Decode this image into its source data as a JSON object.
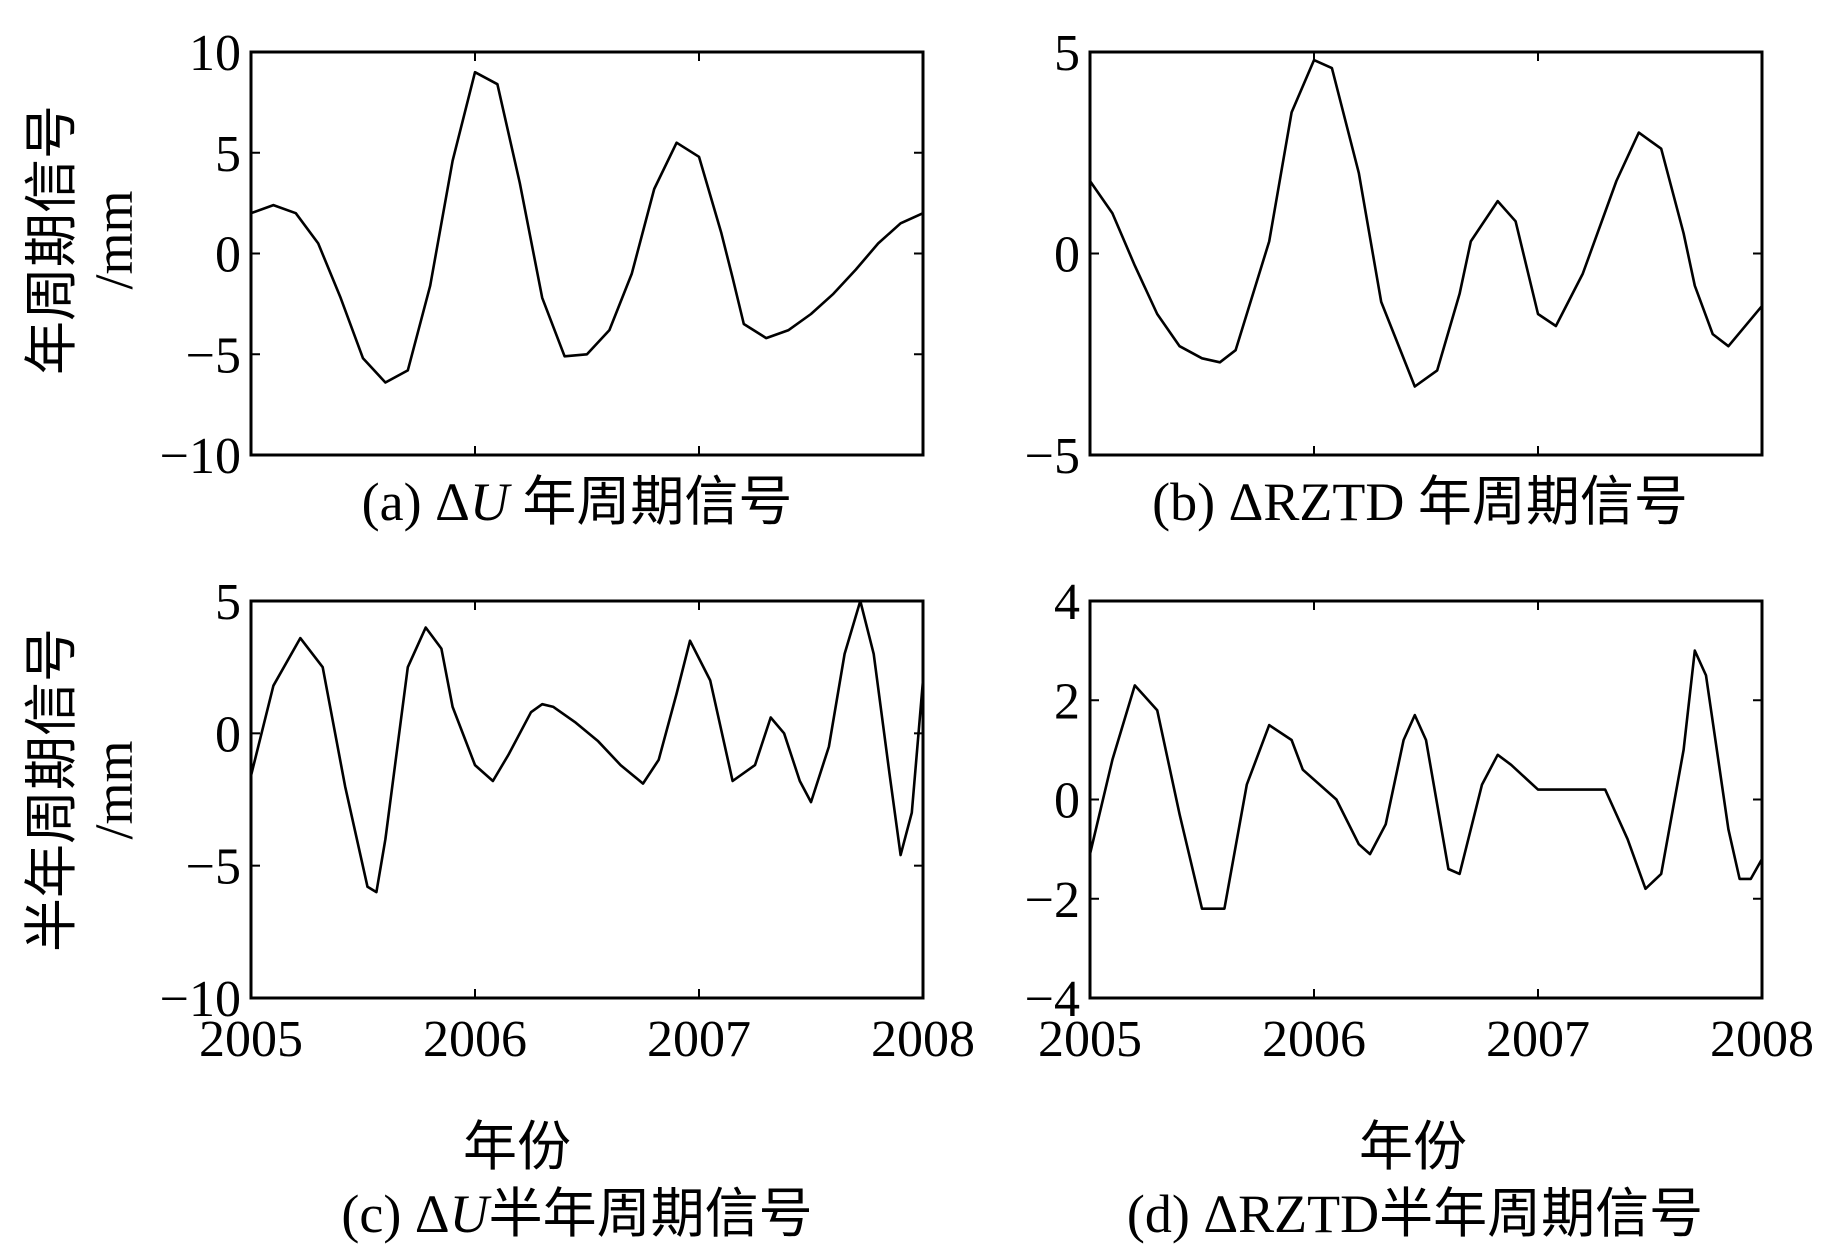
{
  "figure": {
    "ylabels": {
      "top_line1": "年周期信号",
      "top_line2": "/mm",
      "bottom_line1": "半年周期信号",
      "bottom_line2": "/mm"
    },
    "xlabel": "年份",
    "captions": {
      "a": {
        "prefix": "(a) Δ",
        "var": "U",
        "suffix": " 年周期信号"
      },
      "b": {
        "prefix": "(b) ΔRZTD 年周期信号",
        "var": "",
        "suffix": ""
      },
      "c": {
        "prefix": "(c) Δ",
        "var": "U",
        "suffix": "半年周期信号"
      },
      "d": {
        "prefix": "(d) ΔRZTD半年周期信号",
        "var": "",
        "suffix": ""
      }
    }
  },
  "chart_data": [
    {
      "id": "a",
      "type": "line",
      "xlim": [
        2005,
        2008
      ],
      "ylim": [
        -10,
        10
      ],
      "yticks": [
        10,
        5,
        0,
        -5,
        -10
      ],
      "ytick_labels": [
        "10",
        "5",
        "0",
        "−5",
        "−10"
      ],
      "xticks": [
        2006,
        2007
      ],
      "xtick_labels": [],
      "x": [
        2005.0,
        2005.1,
        2005.2,
        2005.3,
        2005.4,
        2005.5,
        2005.6,
        2005.7,
        2005.8,
        2005.9,
        2006.0,
        2006.1,
        2006.2,
        2006.3,
        2006.4,
        2006.5,
        2006.6,
        2006.7,
        2006.8,
        2006.9,
        2007.0,
        2007.1,
        2007.15,
        2007.2,
        2007.3,
        2007.4,
        2007.5,
        2007.6,
        2007.7,
        2007.8,
        2007.9,
        2008.0
      ],
      "y": [
        2.0,
        2.4,
        2.0,
        0.5,
        -2.2,
        -5.2,
        -6.4,
        -5.8,
        -1.6,
        4.6,
        9.0,
        8.4,
        3.5,
        -2.2,
        -5.1,
        -5.0,
        -3.8,
        -1.0,
        3.2,
        5.5,
        4.8,
        1.0,
        -1.2,
        -3.5,
        -4.2,
        -3.8,
        -3.0,
        -2.0,
        -0.8,
        0.5,
        1.5,
        2.0
      ]
    },
    {
      "id": "b",
      "type": "line",
      "xlim": [
        2005,
        2008
      ],
      "ylim": [
        -5,
        5
      ],
      "yticks": [
        5,
        0,
        -5
      ],
      "ytick_labels": [
        "5",
        "0",
        "−5"
      ],
      "xticks": [
        2006,
        2007
      ],
      "xtick_labels": [],
      "x": [
        2005.0,
        2005.1,
        2005.2,
        2005.3,
        2005.4,
        2005.5,
        2005.58,
        2005.65,
        2005.8,
        2005.9,
        2006.0,
        2006.08,
        2006.2,
        2006.3,
        2006.45,
        2006.55,
        2006.65,
        2006.7,
        2006.82,
        2006.9,
        2007.0,
        2007.08,
        2007.2,
        2007.35,
        2007.45,
        2007.55,
        2007.65,
        2007.7,
        2007.78,
        2007.85,
        2008.0
      ],
      "y": [
        1.8,
        1.0,
        -0.3,
        -1.5,
        -2.3,
        -2.6,
        -2.7,
        -2.4,
        0.3,
        3.5,
        4.8,
        4.6,
        2.0,
        -1.2,
        -3.3,
        -2.9,
        -1.0,
        0.3,
        1.3,
        0.8,
        -1.5,
        -1.8,
        -0.5,
        1.8,
        3.0,
        2.6,
        0.5,
        -0.8,
        -2.0,
        -2.3,
        -1.3
      ]
    },
    {
      "id": "c",
      "type": "line",
      "xlim": [
        2005,
        2008
      ],
      "ylim": [
        -10,
        5
      ],
      "yticks": [
        5,
        0,
        -5,
        -10
      ],
      "ytick_labels": [
        "5",
        "0",
        "−5",
        "−10"
      ],
      "xticks": [
        2005,
        2006,
        2007,
        2008
      ],
      "xtick_labels": [
        "2005",
        "2006",
        "2007",
        "2008"
      ],
      "x": [
        2005.0,
        2005.1,
        2005.22,
        2005.32,
        2005.42,
        2005.52,
        2005.56,
        2005.6,
        2005.7,
        2005.78,
        2005.85,
        2005.9,
        2006.0,
        2006.08,
        2006.15,
        2006.25,
        2006.3,
        2006.35,
        2006.45,
        2006.55,
        2006.65,
        2006.75,
        2006.82,
        2006.9,
        2006.96,
        2007.05,
        2007.15,
        2007.25,
        2007.32,
        2007.38,
        2007.45,
        2007.5,
        2007.58,
        2007.65,
        2007.72,
        2007.78,
        2007.85,
        2007.9,
        2007.95,
        2008.0
      ],
      "y": [
        -1.6,
        1.8,
        3.6,
        2.5,
        -2.0,
        -5.8,
        -6.0,
        -4.0,
        2.5,
        4.0,
        3.2,
        1.0,
        -1.2,
        -1.8,
        -0.8,
        0.8,
        1.1,
        1.0,
        0.4,
        -0.3,
        -1.2,
        -1.9,
        -1.0,
        1.5,
        3.5,
        2.0,
        -1.8,
        -1.2,
        0.6,
        0.0,
        -1.8,
        -2.6,
        -0.5,
        3.0,
        5.0,
        3.0,
        -1.5,
        -4.6,
        -3.0,
        2.0
      ]
    },
    {
      "id": "d",
      "type": "line",
      "xlim": [
        2005,
        2008
      ],
      "ylim": [
        -4,
        4
      ],
      "yticks": [
        4,
        2,
        0,
        -2,
        -4
      ],
      "ytick_labels": [
        "4",
        "2",
        "0",
        "−2",
        "−4"
      ],
      "xticks": [
        2005,
        2006,
        2007,
        2008
      ],
      "xtick_labels": [
        "2005",
        "2006",
        "2007",
        "2008"
      ],
      "x": [
        2005.0,
        2005.1,
        2005.2,
        2005.3,
        2005.4,
        2005.5,
        2005.6,
        2005.7,
        2005.8,
        2005.9,
        2005.95,
        2006.1,
        2006.2,
        2006.25,
        2006.32,
        2006.4,
        2006.45,
        2006.5,
        2006.6,
        2006.65,
        2006.75,
        2006.82,
        2006.88,
        2007.0,
        2007.1,
        2007.25,
        2007.3,
        2007.4,
        2007.48,
        2007.55,
        2007.65,
        2007.7,
        2007.75,
        2007.85,
        2007.9,
        2007.95,
        2008.0
      ],
      "y": [
        -1.1,
        0.8,
        2.3,
        1.8,
        -0.3,
        -2.2,
        -2.2,
        0.3,
        1.5,
        1.2,
        0.6,
        0.0,
        -0.9,
        -1.1,
        -0.5,
        1.2,
        1.7,
        1.2,
        -1.4,
        -1.5,
        0.3,
        0.9,
        0.7,
        0.2,
        0.2,
        0.2,
        0.2,
        -0.8,
        -1.8,
        -1.5,
        1.0,
        3.0,
        2.5,
        -0.6,
        -1.6,
        -1.6,
        -1.2
      ]
    }
  ]
}
